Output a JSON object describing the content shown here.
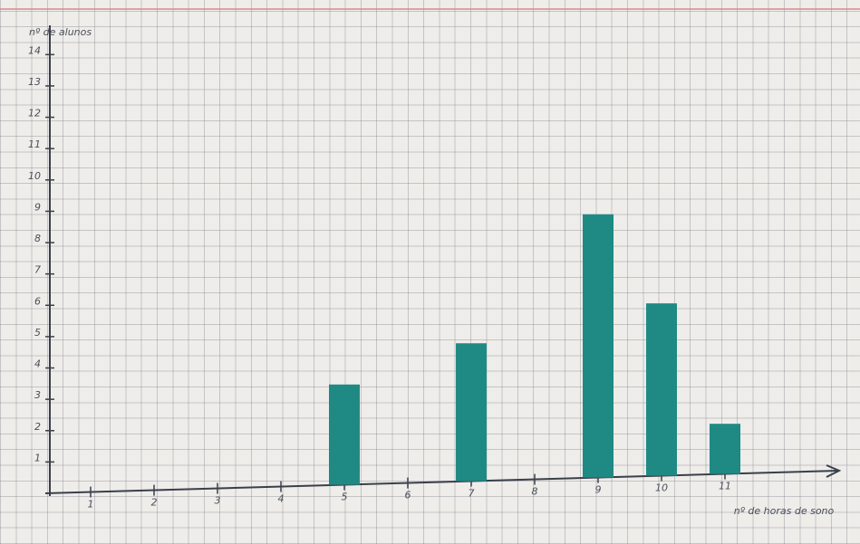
{
  "chart_data": {
    "type": "bar",
    "y_label": "nº de alunos",
    "x_label": "nº de horas de sono",
    "categories": [
      "1",
      "2",
      "3",
      "4",
      "5",
      "6",
      "7",
      "8",
      "9",
      "10",
      "11"
    ],
    "values": [
      null,
      null,
      null,
      null,
      3.2,
      null,
      4.4,
      null,
      8.4,
      5.5,
      1.6
    ],
    "color": "#1f8a84",
    "ylim": [
      0,
      14.5
    ],
    "yticks": [
      1,
      2,
      3,
      4,
      5,
      6,
      7,
      8,
      9,
      10,
      11,
      12,
      13,
      14
    ]
  }
}
